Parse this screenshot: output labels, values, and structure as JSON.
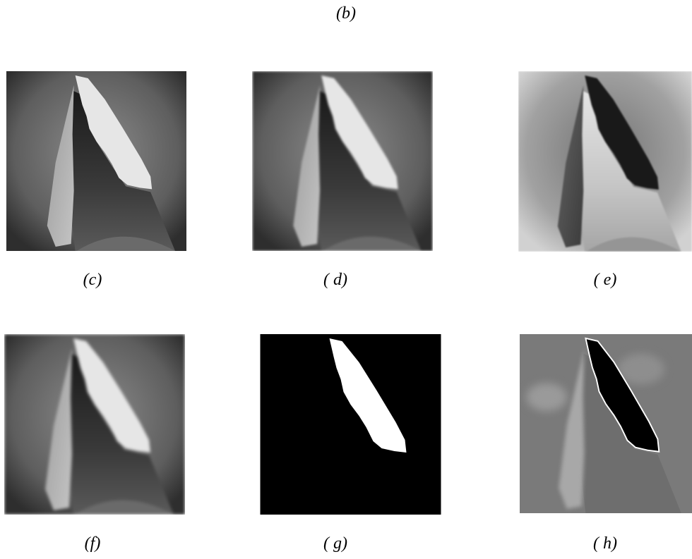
{
  "figure": {
    "top_caption": "(b)",
    "panels": [
      {
        "caption": "(c)"
      },
      {
        "caption": "( d)"
      },
      {
        "caption": "( e)"
      },
      {
        "caption": "(f)"
      },
      {
        "caption": "( g)"
      },
      {
        "caption": "( h)"
      }
    ]
  }
}
